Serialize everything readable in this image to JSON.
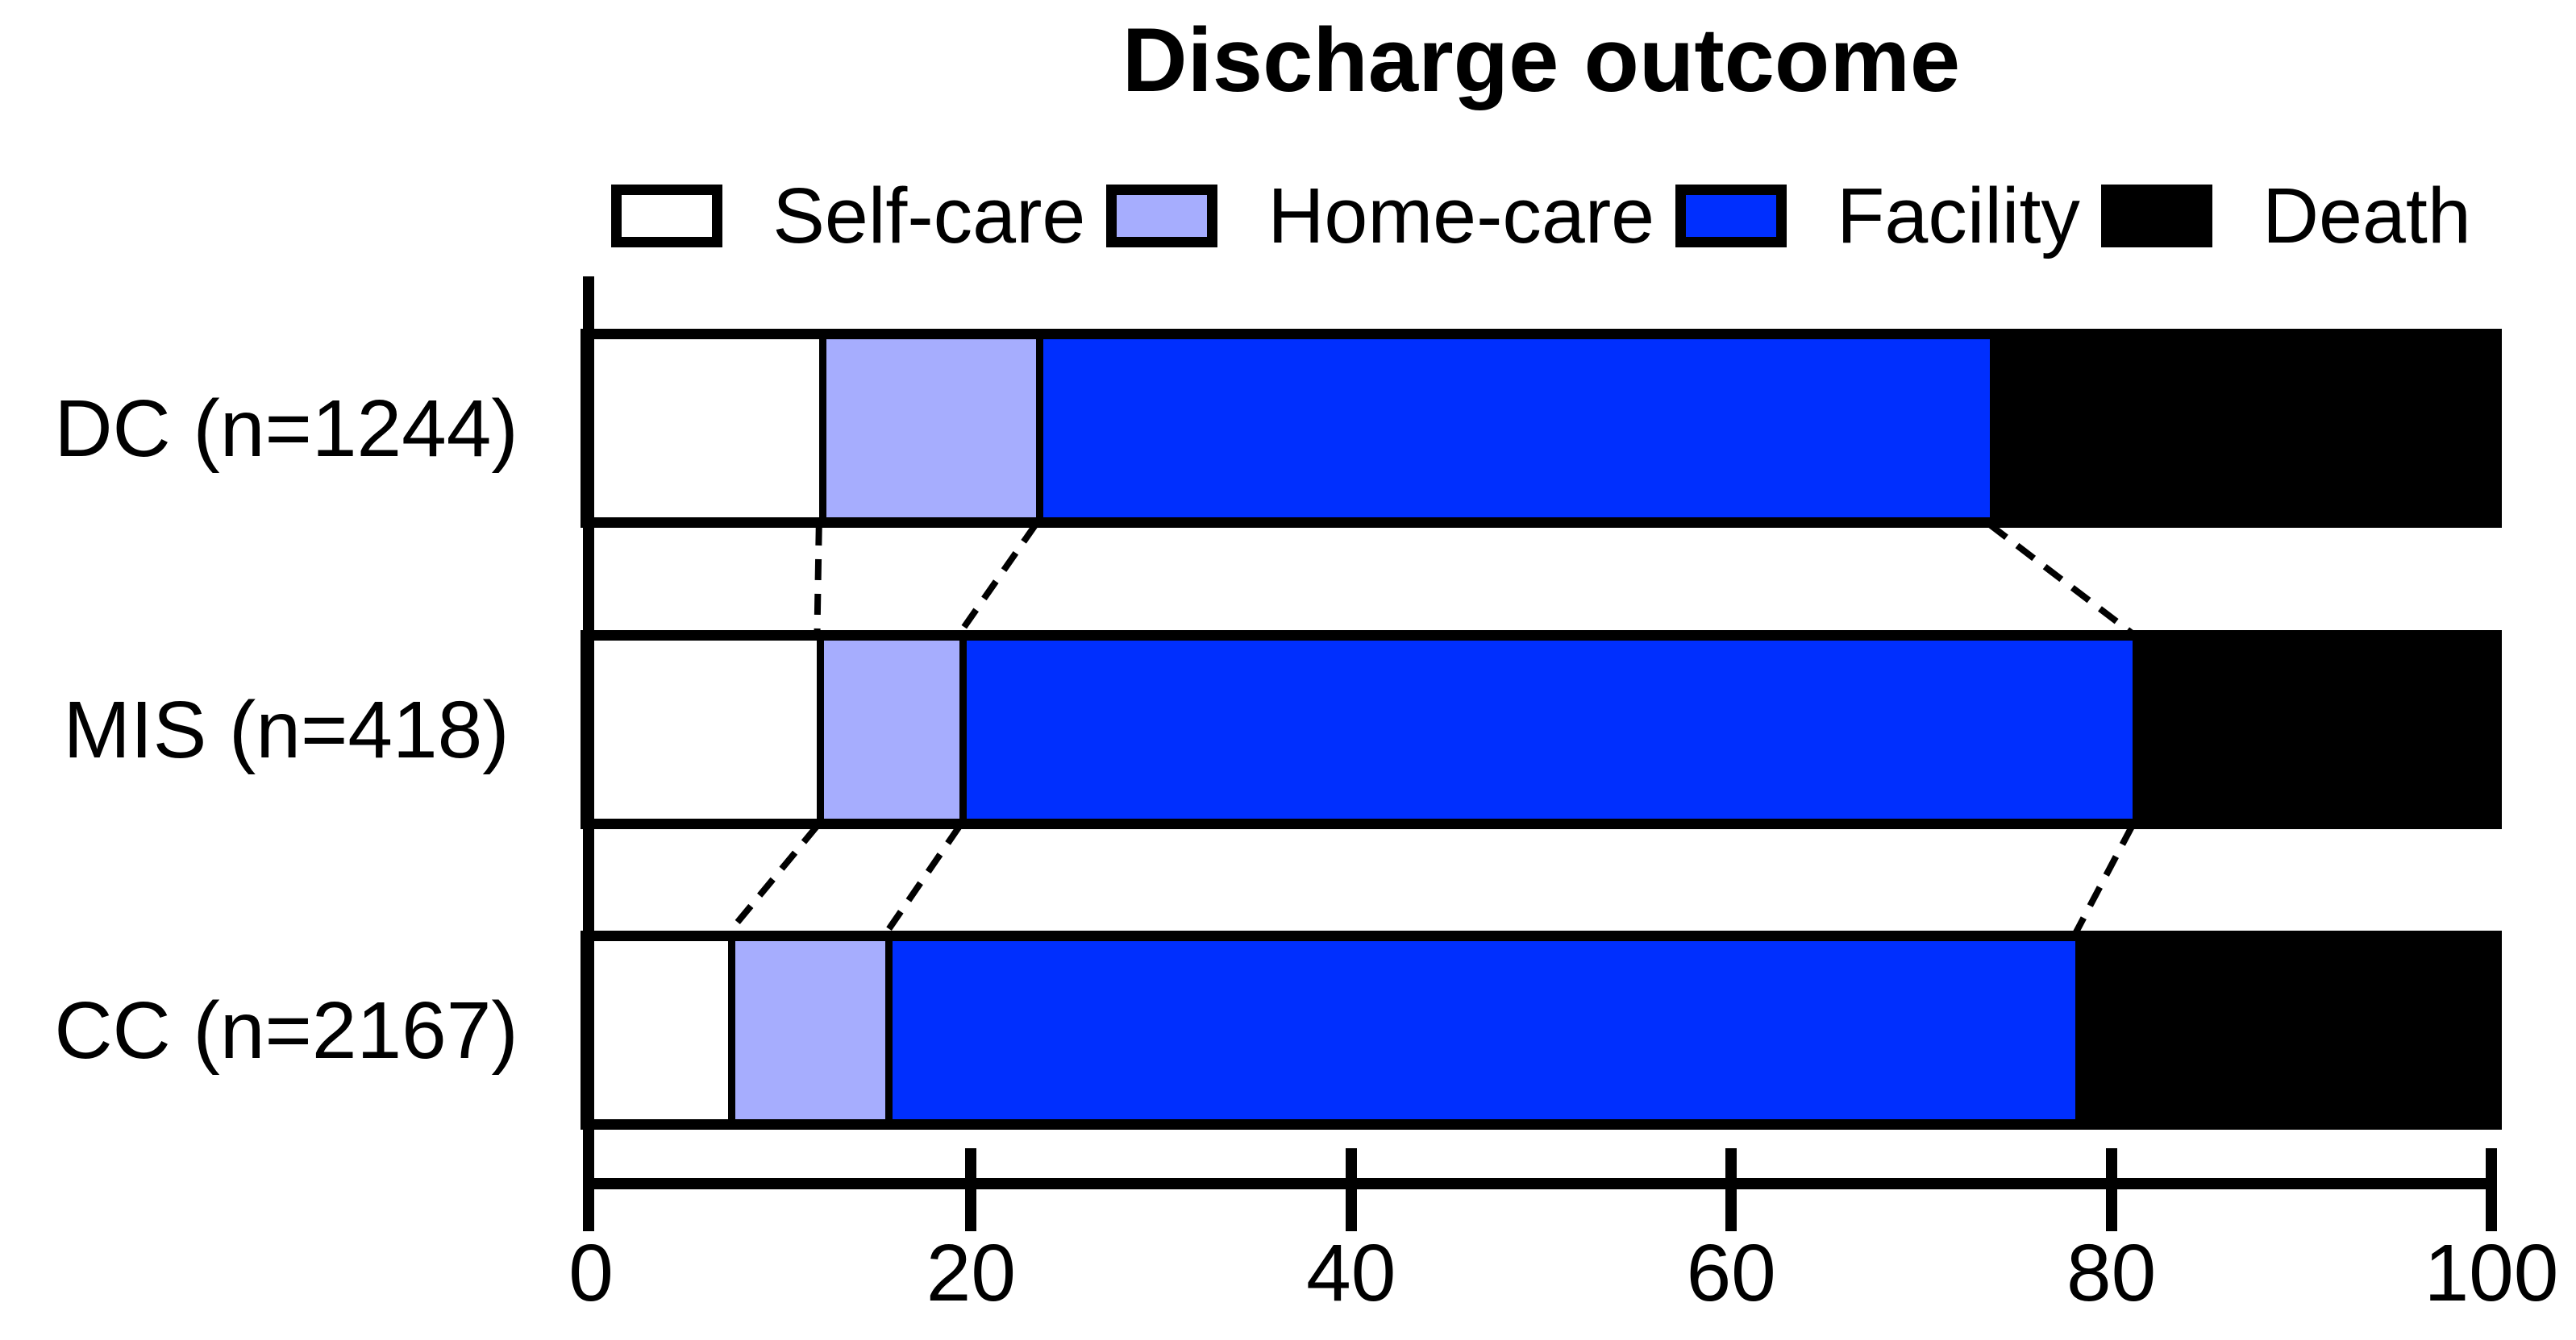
{
  "title": "Discharge outcome",
  "legend": [
    {
      "label": "Self-care",
      "color": "#ffffff"
    },
    {
      "label": "Home-care",
      "color": "#a6adfe"
    },
    {
      "label": "Facility",
      "color": "#002ffe"
    },
    {
      "label": "Death",
      "color": "#000000"
    }
  ],
  "chart_data": {
    "type": "bar",
    "orientation": "horizontal",
    "stacked": true,
    "title": "Discharge outcome",
    "categories": [
      "DC (n=1244)",
      "MIS (n=418)",
      "CC (n=2167)"
    ],
    "series": [
      {
        "name": "Self-care",
        "color": "#ffffff",
        "values": [
          12.0,
          11.9,
          7.2
        ]
      },
      {
        "name": "Home-care",
        "color": "#a6adfe",
        "values": [
          11.4,
          7.5,
          8.3
        ]
      },
      {
        "name": "Facility",
        "color": "#002ffe",
        "values": [
          50.2,
          61.7,
          62.6
        ]
      },
      {
        "name": "Death",
        "color": "#000000",
        "values": [
          26.4,
          18.9,
          21.9
        ]
      }
    ],
    "x_ticks": [
      0,
      20,
      40,
      60,
      80,
      100
    ],
    "xlim": [
      0,
      100
    ],
    "ylabel": "",
    "xlabel": "",
    "legend_position": "top",
    "annotations": "dashed lines connect segment boundaries between adjacent bars"
  }
}
